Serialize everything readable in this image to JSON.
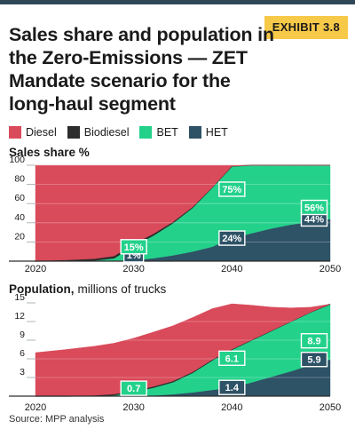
{
  "header": {
    "exhibit": "EXHIBIT 3.8",
    "title": "Sales share and population in the Zero-Emissions — ZET Mandate scenario for the long-haul segment"
  },
  "legend": [
    {
      "name": "Diesel",
      "color": "#d94a5a"
    },
    {
      "name": "Biodiesel",
      "color": "#2d2d2d"
    },
    {
      "name": "BET",
      "color": "#23d18b"
    },
    {
      "name": "HET",
      "color": "#2e5266"
    }
  ],
  "source": "Source: MPP analysis",
  "chart_data": [
    {
      "type": "area",
      "title": "Sales share %",
      "ylabel": "",
      "xlabel": "",
      "xlim": [
        2020,
        2050
      ],
      "ylim": [
        0,
        100
      ],
      "yticks": [
        20,
        40,
        60,
        80,
        100
      ],
      "xticks": [
        2020,
        2030,
        2040,
        2050
      ],
      "grid": true,
      "x": [
        2020,
        2023,
        2026,
        2028,
        2030,
        2032,
        2034,
        2036,
        2038,
        2040,
        2042,
        2044,
        2046,
        2048,
        2050
      ],
      "series": [
        {
          "name": "HET",
          "values": [
            0,
            0,
            0,
            0.3,
            1,
            3,
            6,
            10,
            15,
            24,
            29,
            34,
            38,
            41,
            44
          ]
        },
        {
          "name": "BET",
          "values": [
            0,
            0.2,
            1,
            3,
            15,
            24,
            34,
            46,
            62,
            75,
            71,
            66,
            62,
            59,
            56
          ]
        },
        {
          "name": "Biodiesel",
          "values": [
            0.5,
            1,
            1.5,
            2,
            2,
            1.5,
            1,
            0.5,
            0,
            0,
            0,
            0,
            0,
            0,
            0
          ]
        },
        {
          "name": "Diesel",
          "values": [
            99.5,
            98.8,
            97.5,
            94.7,
            82,
            71.5,
            59,
            43.5,
            23,
            1,
            0,
            0,
            0,
            0,
            0
          ]
        }
      ],
      "annotations": [
        {
          "x": 2030,
          "y": 1,
          "text": "1%",
          "series": "HET"
        },
        {
          "x": 2030,
          "y": 15,
          "text": "15%",
          "series": "BET"
        },
        {
          "x": 2040,
          "y": 24,
          "text": "24%",
          "series": "HET"
        },
        {
          "x": 2040,
          "y": 75,
          "text": "75%",
          "series": "BET"
        },
        {
          "x": 2050,
          "y": 44,
          "text": "44%",
          "series": "HET"
        },
        {
          "x": 2050,
          "y": 56,
          "text": "56%",
          "series": "BET"
        }
      ]
    },
    {
      "type": "area",
      "title": "Population,",
      "title_suffix": "millions of trucks",
      "ylabel": "",
      "xlabel": "",
      "xlim": [
        2020,
        2050
      ],
      "ylim": [
        0,
        15
      ],
      "yticks": [
        3,
        6,
        9,
        12,
        15
      ],
      "xticks": [
        2020,
        2030,
        2040,
        2050
      ],
      "grid": true,
      "x": [
        2020,
        2023,
        2026,
        2028,
        2030,
        2032,
        2034,
        2036,
        2038,
        2040,
        2042,
        2044,
        2046,
        2048,
        2050
      ],
      "series": [
        {
          "name": "HET",
          "values": [
            0,
            0,
            0,
            0,
            0.02,
            0.1,
            0.3,
            0.6,
            1.0,
            1.4,
            2.2,
            3.1,
            4.0,
            5.0,
            5.9
          ]
        },
        {
          "name": "BET",
          "values": [
            0,
            0,
            0.05,
            0.2,
            0.7,
            1.3,
            2.0,
            3.2,
            4.8,
            6.1,
            6.8,
            7.4,
            8.0,
            8.5,
            8.9
          ]
        },
        {
          "name": "Biodiesel",
          "values": [
            0,
            0.03,
            0.08,
            0.12,
            0.15,
            0.15,
            0.12,
            0.1,
            0.08,
            0.05,
            0.03,
            0.02,
            0,
            0,
            0
          ]
        },
        {
          "name": "Diesel",
          "values": [
            7.0,
            7.45,
            7.9,
            8.2,
            8.45,
            8.75,
            8.9,
            8.75,
            8.2,
            7.3,
            5.6,
            3.8,
            2.2,
            0.8,
            0
          ]
        }
      ],
      "annotations": [
        {
          "x": 2030,
          "y": 0.7,
          "text": "0.7",
          "series": "BET"
        },
        {
          "x": 2040,
          "y": 1.4,
          "text": "1.4",
          "series": "HET"
        },
        {
          "x": 2040,
          "y": 6.1,
          "text": "6.1",
          "series": "BET"
        },
        {
          "x": 2050,
          "y": 5.9,
          "text": "5.9",
          "series": "HET"
        },
        {
          "x": 2050,
          "y": 8.9,
          "text": "8.9",
          "series": "BET"
        }
      ]
    }
  ]
}
